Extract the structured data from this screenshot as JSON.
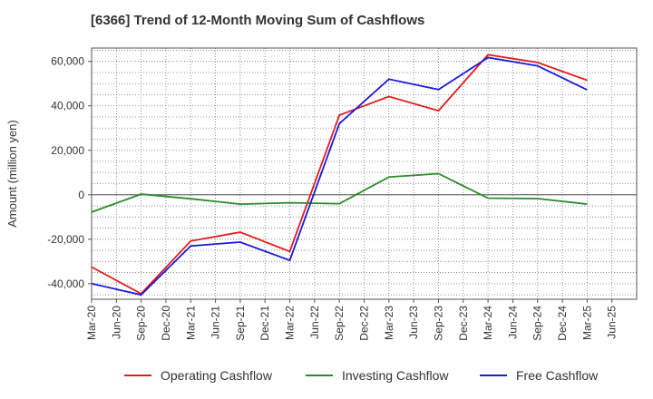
{
  "chart_data": {
    "type": "line",
    "title": "[6366]  Trend of 12-Month Moving Sum of Cashflows",
    "ylabel": "Amount (million yen)",
    "xlabel": "",
    "ylim": [
      -47000,
      66000
    ],
    "yticks": [
      -40000,
      -20000,
      0,
      20000,
      40000,
      60000
    ],
    "ytick_labels": [
      "-40,000",
      "-20,000",
      "0",
      "20,000",
      "40,000",
      "60,000"
    ],
    "x_labels": [
      "Mar-20",
      "Jun-20",
      "Sep-20",
      "Dec-20",
      "Mar-21",
      "Jun-21",
      "Sep-21",
      "Dec-21",
      "Mar-22",
      "Jun-22",
      "Sep-22",
      "Dec-22",
      "Mar-23",
      "Jun-23",
      "Sep-23",
      "Dec-23",
      "Mar-24",
      "Jun-24",
      "Sep-24",
      "Dec-24",
      "Mar-25",
      "Jun-25"
    ],
    "grid": true,
    "legend_position": "bottom",
    "series": [
      {
        "name": "Operating Cashflow",
        "color": "#e31a1c",
        "points": [
          [
            "Mar-20",
            -32500
          ],
          [
            "Sep-20",
            -44500
          ],
          [
            "Mar-21",
            -20800
          ],
          [
            "Sep-21",
            -16800
          ],
          [
            "Mar-22",
            -25500
          ],
          [
            "Sep-22",
            35800
          ],
          [
            "Mar-23",
            44200
          ],
          [
            "Sep-23",
            37800
          ],
          [
            "Mar-24",
            63000
          ],
          [
            "Sep-24",
            59500
          ],
          [
            "Mar-25",
            51500
          ]
        ]
      },
      {
        "name": "Investing Cashflow",
        "color": "#2b8a2b",
        "points": [
          [
            "Mar-20",
            -7800
          ],
          [
            "Sep-20",
            300
          ],
          [
            "Mar-21",
            -1800
          ],
          [
            "Sep-21",
            -4200
          ],
          [
            "Mar-22",
            -3600
          ],
          [
            "Sep-22",
            -4000
          ],
          [
            "Mar-23",
            8000
          ],
          [
            "Sep-23",
            9500
          ],
          [
            "Mar-24",
            -1500
          ],
          [
            "Sep-24",
            -1700
          ],
          [
            "Mar-25",
            -4200
          ]
        ]
      },
      {
        "name": "Free Cashflow",
        "color": "#1a1adb",
        "points": [
          [
            "Mar-20",
            -40000
          ],
          [
            "Sep-20",
            -45000
          ],
          [
            "Mar-21",
            -23000
          ],
          [
            "Sep-21",
            -21300
          ],
          [
            "Mar-22",
            -29500
          ],
          [
            "Sep-22",
            32000
          ],
          [
            "Mar-23",
            52000
          ],
          [
            "Sep-23",
            47300
          ],
          [
            "Mar-24",
            61700
          ],
          [
            "Sep-24",
            58000
          ],
          [
            "Mar-25",
            47200
          ]
        ]
      }
    ]
  }
}
